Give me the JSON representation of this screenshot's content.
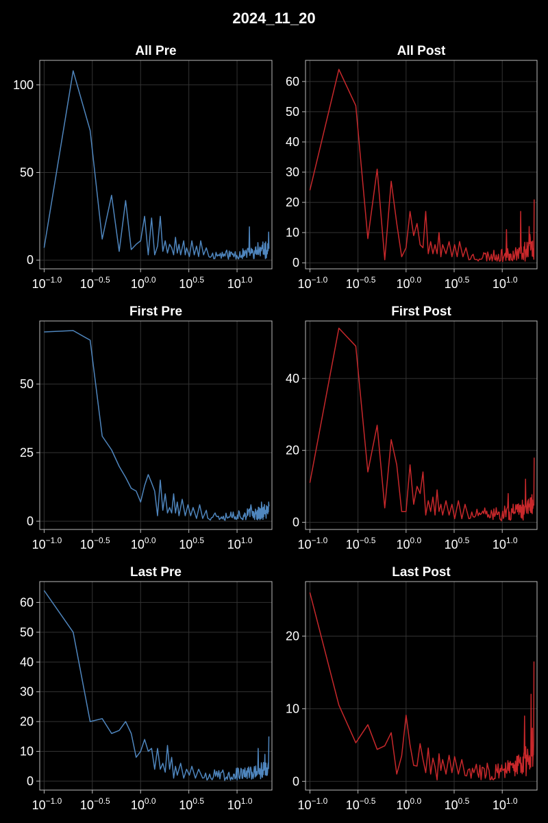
{
  "figure": {
    "title": "2024_11_20"
  },
  "colors": {
    "pre": "#4f86be",
    "post": "#c8282b",
    "background": "#000000"
  },
  "chart_data": [
    {
      "type": "line",
      "title": "All Pre",
      "color": "#4f86be",
      "xscale": "log10",
      "xlim": [
        0.09,
        23
      ],
      "ylim": [
        -5,
        114
      ],
      "yticks": [
        0,
        50,
        100
      ],
      "xticks": [
        {
          "base": "10",
          "exp": "−1.0",
          "v": 0.1
        },
        {
          "base": "10",
          "exp": "−0.5",
          "v": 0.316
        },
        {
          "base": "10",
          "exp": "0.0",
          "v": 1
        },
        {
          "base": "10",
          "exp": "0.5",
          "v": 3.162
        },
        {
          "base": "10",
          "exp": "1.0",
          "v": 10
        }
      ],
      "head": [
        [
          0.1,
          7
        ],
        [
          0.2,
          108
        ],
        [
          0.3,
          74
        ],
        [
          0.4,
          12
        ],
        [
          0.5,
          37
        ],
        [
          0.6,
          5
        ],
        [
          0.7,
          34
        ],
        [
          0.8,
          6
        ],
        [
          0.9,
          9
        ],
        [
          1.0,
          11
        ],
        [
          1.1,
          25
        ],
        [
          1.2,
          3
        ],
        [
          1.3,
          24
        ],
        [
          1.4,
          3
        ],
        [
          1.5,
          8
        ],
        [
          1.6,
          25
        ],
        [
          1.7,
          5
        ],
        [
          1.8,
          11
        ],
        [
          1.9,
          4
        ],
        [
          2.0,
          9
        ],
        [
          2.1,
          7
        ],
        [
          2.2,
          3
        ],
        [
          2.3,
          13
        ],
        [
          2.4,
          4
        ],
        [
          2.5,
          9
        ],
        [
          2.6,
          3
        ],
        [
          2.8,
          11
        ],
        [
          2.9,
          3
        ],
        [
          3.0,
          7
        ],
        [
          3.2,
          2
        ],
        [
          3.4,
          11
        ],
        [
          3.6,
          3
        ],
        [
          3.8,
          8
        ],
        [
          4.0,
          2
        ],
        [
          4.2,
          11
        ],
        [
          4.5,
          3
        ],
        [
          4.8,
          7
        ],
        [
          5.1,
          2
        ]
      ],
      "tail_start": 5.1,
      "tail_end": 21.5,
      "tail_step": 0.16,
      "tail_base": 1.8,
      "tail_amp": 5,
      "tail_rise": 7,
      "tail_seed": 11,
      "spikes": [
        [
          13.5,
          19
        ],
        [
          16.5,
          10
        ],
        [
          21.3,
          16
        ]
      ]
    },
    {
      "type": "line",
      "title": "All Post",
      "color": "#c8282b",
      "xscale": "log10",
      "xlim": [
        0.09,
        23
      ],
      "ylim": [
        -2,
        67
      ],
      "yticks": [
        0,
        10,
        20,
        30,
        40,
        50,
        60
      ],
      "xticks": [
        {
          "base": "10",
          "exp": "−1.0",
          "v": 0.1
        },
        {
          "base": "10",
          "exp": "−0.5",
          "v": 0.316
        },
        {
          "base": "10",
          "exp": "0.0",
          "v": 1
        },
        {
          "base": "10",
          "exp": "0.5",
          "v": 3.162
        },
        {
          "base": "10",
          "exp": "1.0",
          "v": 10
        }
      ],
      "head": [
        [
          0.1,
          24
        ],
        [
          0.2,
          64
        ],
        [
          0.3,
          52
        ],
        [
          0.4,
          8
        ],
        [
          0.5,
          31
        ],
        [
          0.6,
          1
        ],
        [
          0.7,
          27
        ],
        [
          0.8,
          13
        ],
        [
          0.9,
          2
        ],
        [
          1.0,
          5
        ],
        [
          1.1,
          17
        ],
        [
          1.2,
          9
        ],
        [
          1.3,
          13
        ],
        [
          1.4,
          6
        ],
        [
          1.5,
          5
        ],
        [
          1.6,
          17
        ],
        [
          1.7,
          3
        ],
        [
          1.8,
          7
        ],
        [
          1.9,
          3
        ],
        [
          2.0,
          6
        ],
        [
          2.1,
          3
        ],
        [
          2.2,
          10
        ],
        [
          2.3,
          2
        ],
        [
          2.4,
          6
        ],
        [
          2.6,
          3
        ],
        [
          2.8,
          7
        ],
        [
          3.0,
          2
        ],
        [
          3.2,
          6
        ],
        [
          3.4,
          2
        ],
        [
          3.6,
          7
        ],
        [
          3.9,
          2
        ],
        [
          4.2,
          5
        ],
        [
          4.5,
          1
        ]
      ],
      "tail_start": 4.5,
      "tail_end": 21.5,
      "tail_step": 0.16,
      "tail_base": 1.5,
      "tail_amp": 3.5,
      "tail_rise": 7,
      "tail_seed": 23,
      "spikes": [
        [
          11,
          11
        ],
        [
          15.5,
          17
        ],
        [
          19,
          12
        ],
        [
          21.4,
          21
        ]
      ]
    },
    {
      "type": "line",
      "title": "First Pre",
      "color": "#4f86be",
      "xscale": "log10",
      "xlim": [
        0.09,
        23
      ],
      "ylim": [
        -3,
        73
      ],
      "yticks": [
        0,
        25,
        50
      ],
      "xticks": [
        {
          "base": "10",
          "exp": "−1.0",
          "v": 0.1
        },
        {
          "base": "10",
          "exp": "−0.5",
          "v": 0.316
        },
        {
          "base": "10",
          "exp": "0.0",
          "v": 1
        },
        {
          "base": "10",
          "exp": "0.5",
          "v": 3.162
        },
        {
          "base": "10",
          "exp": "1.0",
          "v": 10
        }
      ],
      "head": [
        [
          0.1,
          69
        ],
        [
          0.2,
          69.5
        ],
        [
          0.3,
          66
        ],
        [
          0.4,
          31
        ],
        [
          0.5,
          26
        ],
        [
          0.6,
          20
        ],
        [
          0.7,
          16
        ],
        [
          0.8,
          12
        ],
        [
          0.9,
          11
        ],
        [
          1.0,
          7
        ],
        [
          1.1,
          13
        ],
        [
          1.2,
          17
        ],
        [
          1.3,
          14
        ],
        [
          1.4,
          11
        ],
        [
          1.5,
          2
        ],
        [
          1.6,
          15
        ],
        [
          1.7,
          4
        ],
        [
          1.8,
          10
        ],
        [
          1.9,
          3
        ],
        [
          2.0,
          5
        ],
        [
          2.1,
          3
        ],
        [
          2.2,
          10
        ],
        [
          2.3,
          3
        ],
        [
          2.4,
          7
        ],
        [
          2.5,
          2
        ],
        [
          2.7,
          8
        ],
        [
          2.9,
          2
        ],
        [
          3.1,
          6
        ],
        [
          3.3,
          2
        ],
        [
          3.5,
          5
        ],
        [
          3.8,
          1
        ],
        [
          4.1,
          6
        ],
        [
          4.4,
          1
        ],
        [
          4.8,
          4
        ]
      ],
      "tail_start": 4.8,
      "tail_end": 21.5,
      "tail_step": 0.16,
      "tail_base": 1.3,
      "tail_amp": 3.5,
      "tail_rise": 2,
      "tail_seed": 37,
      "spikes": [
        [
          14,
          6
        ],
        [
          18,
          7
        ],
        [
          21.3,
          7
        ]
      ]
    },
    {
      "type": "line",
      "title": "First Post",
      "color": "#c8282b",
      "xscale": "log10",
      "xlim": [
        0.09,
        23
      ],
      "ylim": [
        -2,
        56
      ],
      "yticks": [
        0,
        20,
        40
      ],
      "xticks": [
        {
          "base": "10",
          "exp": "−1.0",
          "v": 0.1
        },
        {
          "base": "10",
          "exp": "−0.5",
          "v": 0.316
        },
        {
          "base": "10",
          "exp": "0.0",
          "v": 1
        },
        {
          "base": "10",
          "exp": "0.5",
          "v": 3.162
        },
        {
          "base": "10",
          "exp": "1.0",
          "v": 10
        }
      ],
      "head": [
        [
          0.1,
          11
        ],
        [
          0.2,
          54
        ],
        [
          0.3,
          49
        ],
        [
          0.4,
          14
        ],
        [
          0.5,
          27
        ],
        [
          0.6,
          4
        ],
        [
          0.7,
          23
        ],
        [
          0.8,
          16
        ],
        [
          0.9,
          3
        ],
        [
          1.0,
          3
        ],
        [
          1.1,
          16
        ],
        [
          1.2,
          5
        ],
        [
          1.3,
          10
        ],
        [
          1.4,
          8
        ],
        [
          1.5,
          14
        ],
        [
          1.6,
          2
        ],
        [
          1.7,
          6
        ],
        [
          1.8,
          3
        ],
        [
          1.9,
          7
        ],
        [
          2.0,
          2
        ],
        [
          2.1,
          9
        ],
        [
          2.2,
          3
        ],
        [
          2.3,
          5
        ],
        [
          2.4,
          2
        ],
        [
          2.6,
          6
        ],
        [
          2.8,
          2
        ],
        [
          3.0,
          5
        ],
        [
          3.2,
          1
        ],
        [
          3.5,
          6
        ],
        [
          3.8,
          1
        ],
        [
          4.1,
          5
        ],
        [
          4.5,
          1
        ]
      ],
      "tail_start": 4.5,
      "tail_end": 21.5,
      "tail_step": 0.16,
      "tail_base": 1.2,
      "tail_amp": 3.5,
      "tail_rise": 5,
      "tail_seed": 51,
      "spikes": [
        [
          11.5,
          8
        ],
        [
          17.5,
          12
        ],
        [
          21.4,
          18
        ]
      ]
    },
    {
      "type": "line",
      "title": "Last Pre",
      "color": "#4f86be",
      "xscale": "log10",
      "xlim": [
        0.09,
        23
      ],
      "ylim": [
        -3,
        67
      ],
      "yticks": [
        0,
        10,
        20,
        30,
        40,
        50,
        60
      ],
      "xticks": [
        {
          "base": "10",
          "exp": "−1.0",
          "v": 0.1
        },
        {
          "base": "10",
          "exp": "−0.5",
          "v": 0.316
        },
        {
          "base": "10",
          "exp": "0.0",
          "v": 1
        },
        {
          "base": "10",
          "exp": "0.5",
          "v": 3.162
        },
        {
          "base": "10",
          "exp": "1.0",
          "v": 10
        }
      ],
      "head": [
        [
          0.1,
          64
        ],
        [
          0.2,
          50
        ],
        [
          0.3,
          20
        ],
        [
          0.4,
          21
        ],
        [
          0.5,
          16
        ],
        [
          0.6,
          17
        ],
        [
          0.7,
          20
        ],
        [
          0.8,
          16
        ],
        [
          0.9,
          8
        ],
        [
          1.0,
          10
        ],
        [
          1.1,
          14
        ],
        [
          1.2,
          10
        ],
        [
          1.3,
          11
        ],
        [
          1.4,
          4
        ],
        [
          1.5,
          11
        ],
        [
          1.6,
          4
        ],
        [
          1.7,
          6
        ],
        [
          1.8,
          3
        ],
        [
          1.9,
          12
        ],
        [
          2.0,
          4
        ],
        [
          2.1,
          8
        ],
        [
          2.2,
          1
        ],
        [
          2.3,
          5
        ],
        [
          2.4,
          2
        ],
        [
          2.6,
          6
        ],
        [
          2.8,
          1
        ],
        [
          3.0,
          4
        ],
        [
          3.2,
          2
        ],
        [
          3.4,
          5
        ],
        [
          3.7,
          1
        ],
        [
          4.0,
          4
        ],
        [
          4.4,
          1
        ]
      ],
      "tail_start": 4.4,
      "tail_end": 21.5,
      "tail_step": 0.16,
      "tail_base": 1.2,
      "tail_amp": 3.5,
      "tail_rise": 3,
      "tail_seed": 67,
      "spikes": [
        [
          16.5,
          11
        ],
        [
          19.5,
          9
        ],
        [
          21.4,
          15
        ]
      ]
    },
    {
      "type": "line",
      "title": "Last Post",
      "color": "#c8282b",
      "xscale": "log10",
      "xlim": [
        0.09,
        23
      ],
      "ylim": [
        -1.2,
        27.5
      ],
      "yticks": [
        0,
        10,
        20
      ],
      "xticks": [
        {
          "base": "10",
          "exp": "−1.0",
          "v": 0.1
        },
        {
          "base": "10",
          "exp": "−0.5",
          "v": 0.316
        },
        {
          "base": "10",
          "exp": "0.0",
          "v": 1
        },
        {
          "base": "10",
          "exp": "0.5",
          "v": 3.162
        },
        {
          "base": "10",
          "exp": "1.0",
          "v": 10
        }
      ],
      "head": [
        [
          0.1,
          26
        ],
        [
          0.2,
          10.5
        ],
        [
          0.3,
          5.3
        ],
        [
          0.4,
          7.8
        ],
        [
          0.5,
          4.4
        ],
        [
          0.6,
          4.9
        ],
        [
          0.7,
          6.7
        ],
        [
          0.8,
          1.0
        ],
        [
          0.9,
          3.5
        ],
        [
          1.0,
          9.1
        ],
        [
          1.1,
          5.0
        ],
        [
          1.2,
          2.2
        ],
        [
          1.3,
          2.1
        ],
        [
          1.4,
          5.2
        ],
        [
          1.5,
          3.0
        ],
        [
          1.6,
          1.2
        ],
        [
          1.7,
          4.6
        ],
        [
          1.8,
          1.0
        ],
        [
          1.9,
          3.2
        ],
        [
          2.0,
          2.0
        ],
        [
          2.1,
          0.2
        ],
        [
          2.2,
          3.8
        ],
        [
          2.3,
          1.5
        ],
        [
          2.4,
          3.0
        ],
        [
          2.6,
          1.0
        ],
        [
          2.8,
          3.6
        ],
        [
          3.0,
          1.2
        ],
        [
          3.2,
          3.4
        ],
        [
          3.5,
          1.0
        ],
        [
          3.8,
          3.0
        ],
        [
          4.1,
          0.8
        ]
      ],
      "tail_start": 4.1,
      "tail_end": 21.5,
      "tail_step": 0.16,
      "tail_base": 0.8,
      "tail_amp": 2.2,
      "tail_rise": 6,
      "tail_seed": 83,
      "spikes": [
        [
          17,
          9
        ],
        [
          20,
          12
        ],
        [
          21.4,
          16.5
        ]
      ]
    }
  ]
}
